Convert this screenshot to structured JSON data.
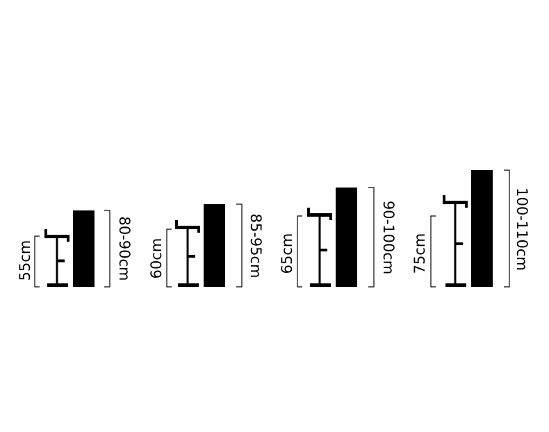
{
  "stands": [
    {
      "height": "55cm",
      "range": "80-90cm"
    },
    {
      "height": "60cm",
      "range": "85-95cm"
    },
    {
      "height": "65cm",
      "range": "90-100cm"
    },
    {
      "height": "75cm",
      "range": "100-110cm"
    }
  ]
}
